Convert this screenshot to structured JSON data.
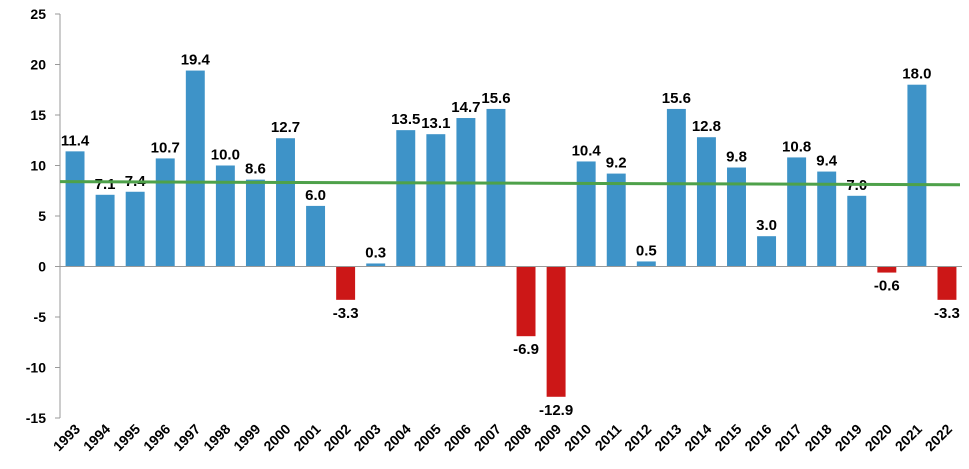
{
  "chart_data": {
    "type": "bar",
    "categories": [
      "1993",
      "1994",
      "1995",
      "1996",
      "1997",
      "1998",
      "1999",
      "2000",
      "2001",
      "2002",
      "2003",
      "2004",
      "2005",
      "2006",
      "2007",
      "2008",
      "2009",
      "2010",
      "2011",
      "2012",
      "2013",
      "2014",
      "2015",
      "2016",
      "2017",
      "2018",
      "2019",
      "2020",
      "2021",
      "2022"
    ],
    "values": [
      11.4,
      7.1,
      7.4,
      10.7,
      19.4,
      10.0,
      8.6,
      12.7,
      6.0,
      -3.3,
      0.3,
      13.5,
      13.1,
      14.7,
      15.6,
      -6.9,
      -12.9,
      10.4,
      9.2,
      0.5,
      15.6,
      12.8,
      9.8,
      3.0,
      10.8,
      9.4,
      7.0,
      -0.6,
      18.0,
      -3.3
    ],
    "value_labels": [
      "11.4",
      "7.1",
      "7.4",
      "10.7",
      "19.4",
      "10.0",
      "8.6",
      "12.7",
      "6.0",
      "-3.3",
      "0.3",
      "13.5",
      "13.1",
      "14.7",
      "15.6",
      "-6.9",
      "-12.9",
      "10.4",
      "9.2",
      "0.5",
      "15.6",
      "12.8",
      "9.8",
      "3.0",
      "10.8",
      "9.4",
      "7.0",
      "-0.6",
      "18.0",
      "-3.3"
    ],
    "ylim": [
      -15,
      25
    ],
    "yticks": [
      -15,
      -10,
      -5,
      0,
      5,
      10,
      15,
      20,
      25
    ],
    "reference_line": {
      "y_start": 8.4,
      "y_end": 8.1,
      "color": "#4ea14a"
    },
    "colors": {
      "positive": "#3e93c8",
      "negative": "#cc1717",
      "axis": "#999999"
    },
    "title": "",
    "xlabel": "",
    "ylabel": "",
    "grid": false,
    "legend": "none"
  }
}
